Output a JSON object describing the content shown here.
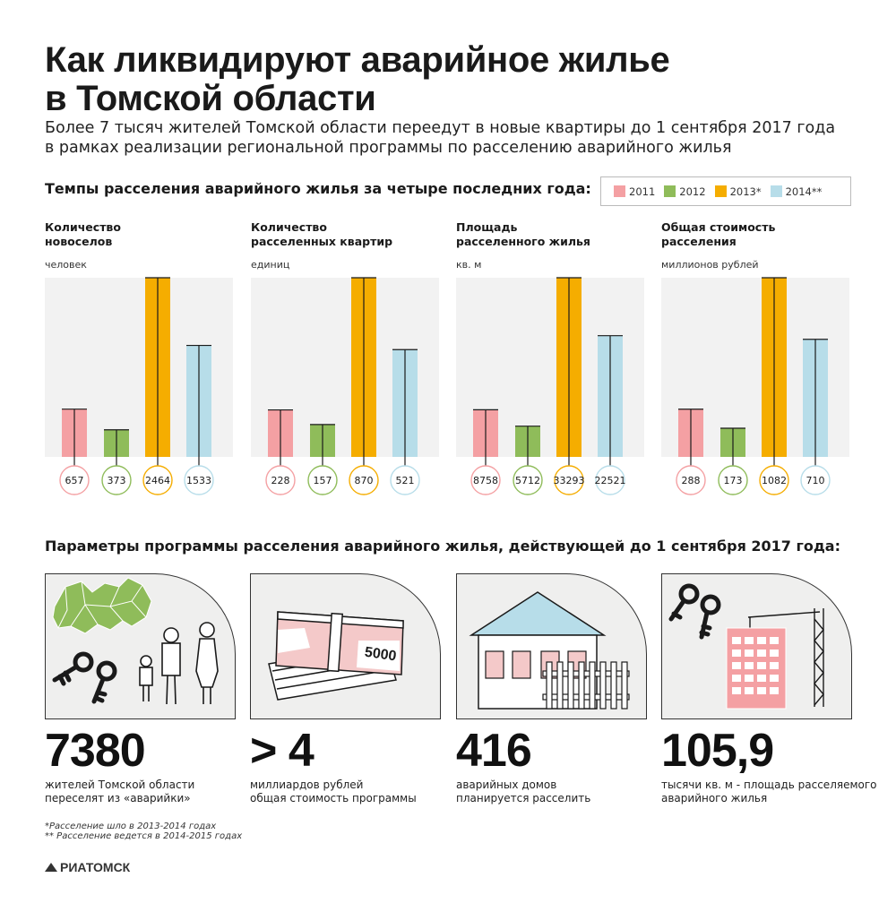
{
  "title_line1": "Как ликвидируют аварийное жилье",
  "title_line2": "в Томской области",
  "subtitle_line1": "Более 7 тысяч жителей Томской области переедут в новые квартиры до 1 сентября 2017 года",
  "subtitle_line2": "в рамках реализации региональной программы по расселению аварийного жилья",
  "section1_title": "Темпы расселения аварийного жилья за четыре последних года:",
  "legend": [
    {
      "label": "2011",
      "color": "#f4a0a3"
    },
    {
      "label": "2012",
      "color": "#8fbc5a"
    },
    {
      "label": "2013*",
      "color": "#f5ad00"
    },
    {
      "label": "2014**",
      "color": "#b7dde9"
    }
  ],
  "chart_data": [
    {
      "type": "bar",
      "title_line1": "Количество",
      "title_line2": "новоселов",
      "unit": "человек",
      "categories": [
        "2011",
        "2012",
        "2013*",
        "2014**"
      ],
      "values": [
        657,
        373,
        2464,
        1533
      ],
      "labels": [
        "657",
        "373",
        "2464",
        "1533"
      ]
    },
    {
      "type": "bar",
      "title_line1": "Количество",
      "title_line2": "расселенных квартир",
      "unit": "единиц",
      "categories": [
        "2011",
        "2012",
        "2013*",
        "2014**"
      ],
      "values": [
        228,
        157,
        870,
        521
      ],
      "labels": [
        "228",
        "157",
        "870",
        "521"
      ]
    },
    {
      "type": "bar",
      "title_line1": "Площадь",
      "title_line2": "расселенного жилья",
      "unit": "кв. м",
      "categories": [
        "2011",
        "2012",
        "2013*",
        "2014**"
      ],
      "values": [
        8758,
        5712,
        33293,
        22521
      ],
      "labels": [
        "8758",
        "5712",
        "33293",
        "22521"
      ]
    },
    {
      "type": "bar",
      "title_line1": "Общая стоимость",
      "title_line2": "расселения",
      "unit": "миллионов рублей",
      "categories": [
        "2011",
        "2012",
        "2013*",
        "2014**"
      ],
      "values": [
        288,
        173,
        1082,
        710
      ],
      "labels": [
        "288",
        "173",
        "1082",
        "710"
      ]
    }
  ],
  "section2_title": "Параметры программы расселения аварийного жилья, действующей до 1 сентября 2017 года:",
  "stats": [
    {
      "value": "7380",
      "caption_line1": "жителей Томской области",
      "caption_line2": "переселят из «аварийки»"
    },
    {
      "value": "> 4",
      "caption_line1": "миллиардов рублей",
      "caption_line2": "общая стоимость программы"
    },
    {
      "value": "416",
      "caption_line1": "аварийных домов",
      "caption_line2": "планируется расселить"
    },
    {
      "value": "105,9",
      "caption_line1": "тысячи кв. м - площадь расселяемого",
      "caption_line2": "аварийного жилья"
    }
  ],
  "banknote_text": "5000",
  "footnote1": "*Расселение шло в 2013-2014 годах",
  "footnote2": "** Расселение ведется в 2014-2015 годах",
  "logo_text": "РИАТОМСК"
}
